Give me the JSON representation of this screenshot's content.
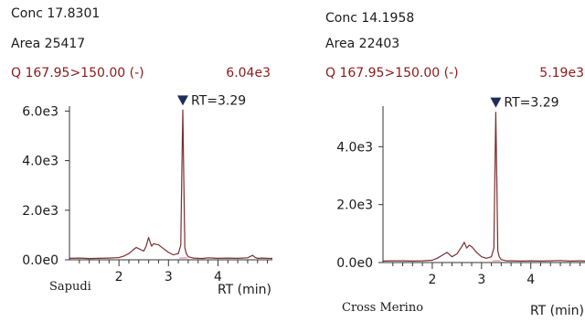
{
  "colors": {
    "trace": "#7a2e2e",
    "marker": "#1f2d5c",
    "baseline": "#e07a8a",
    "text": "#1a1a1a",
    "trace_label": "#8b1a1a"
  },
  "chart_data": [
    {
      "type": "line",
      "conc": "Conc 17.8301",
      "area": "Area 25417",
      "trace": "Q 167.95>150.00 (-)",
      "max_label": "6.04e3",
      "peak_label": "RT=3.29",
      "peak_rt": 3.29,
      "xlabel": "RT (min)",
      "sample": "Sapudi",
      "xlim": [
        1.0,
        5.1
      ],
      "ylim": [
        0,
        6200
      ],
      "xticks": [
        2,
        3,
        4
      ],
      "yticks": [
        0,
        2000,
        4000,
        6000
      ],
      "ytick_labels": [
        "0.0e0",
        "2.0e3",
        "4.0e3",
        "6.0e3"
      ],
      "x": [
        1.0,
        1.2,
        1.4,
        1.6,
        1.8,
        2.0,
        2.1,
        2.2,
        2.3,
        2.35,
        2.4,
        2.5,
        2.55,
        2.6,
        2.63,
        2.66,
        2.7,
        2.8,
        2.9,
        3.0,
        3.1,
        3.2,
        3.25,
        3.27,
        3.29,
        3.31,
        3.33,
        3.36,
        3.4,
        3.5,
        3.6,
        3.7,
        3.8,
        3.9,
        4.0,
        4.2,
        4.4,
        4.6,
        4.7,
        4.75,
        4.8,
        4.9,
        5.0,
        5.1
      ],
      "y": [
        60,
        70,
        50,
        60,
        70,
        90,
        150,
        250,
        420,
        500,
        450,
        350,
        550,
        900,
        700,
        550,
        650,
        600,
        450,
        300,
        200,
        250,
        600,
        3500,
        6040,
        3200,
        500,
        250,
        120,
        70,
        60,
        55,
        80,
        70,
        60,
        70,
        60,
        80,
        180,
        100,
        60,
        70,
        60,
        55
      ]
    },
    {
      "type": "line",
      "conc": "Conc 14.1958",
      "area": "Area 22403",
      "trace": "Q 167.95>150.00 (-)",
      "max_label": "5.19e3",
      "peak_label": "RT=3.29",
      "peak_rt": 3.29,
      "xlabel": "RT (min)",
      "sample": "Cross Merino",
      "xlim": [
        1.0,
        5.1
      ],
      "ylim": [
        0,
        5400
      ],
      "xticks": [
        2,
        3,
        4
      ],
      "yticks": [
        0,
        2000,
        4000
      ],
      "ytick_labels": [
        "0.0e0",
        "2.0e3",
        "4.0e3"
      ],
      "x": [
        1.0,
        1.2,
        1.4,
        1.6,
        1.8,
        2.0,
        2.1,
        2.2,
        2.3,
        2.4,
        2.5,
        2.6,
        2.65,
        2.7,
        2.75,
        2.8,
        2.85,
        2.9,
        3.0,
        3.1,
        3.2,
        3.25,
        3.27,
        3.29,
        3.31,
        3.33,
        3.36,
        3.4,
        3.5,
        3.6,
        3.8,
        4.0,
        4.2,
        4.4,
        4.6,
        4.8,
        5.0,
        5.1
      ],
      "y": [
        50,
        60,
        60,
        50,
        60,
        80,
        150,
        250,
        350,
        200,
        300,
        550,
        700,
        500,
        600,
        550,
        450,
        350,
        200,
        150,
        200,
        500,
        3000,
        5190,
        2900,
        400,
        200,
        100,
        60,
        60,
        50,
        60,
        50,
        60,
        70,
        50,
        60,
        50
      ]
    }
  ]
}
